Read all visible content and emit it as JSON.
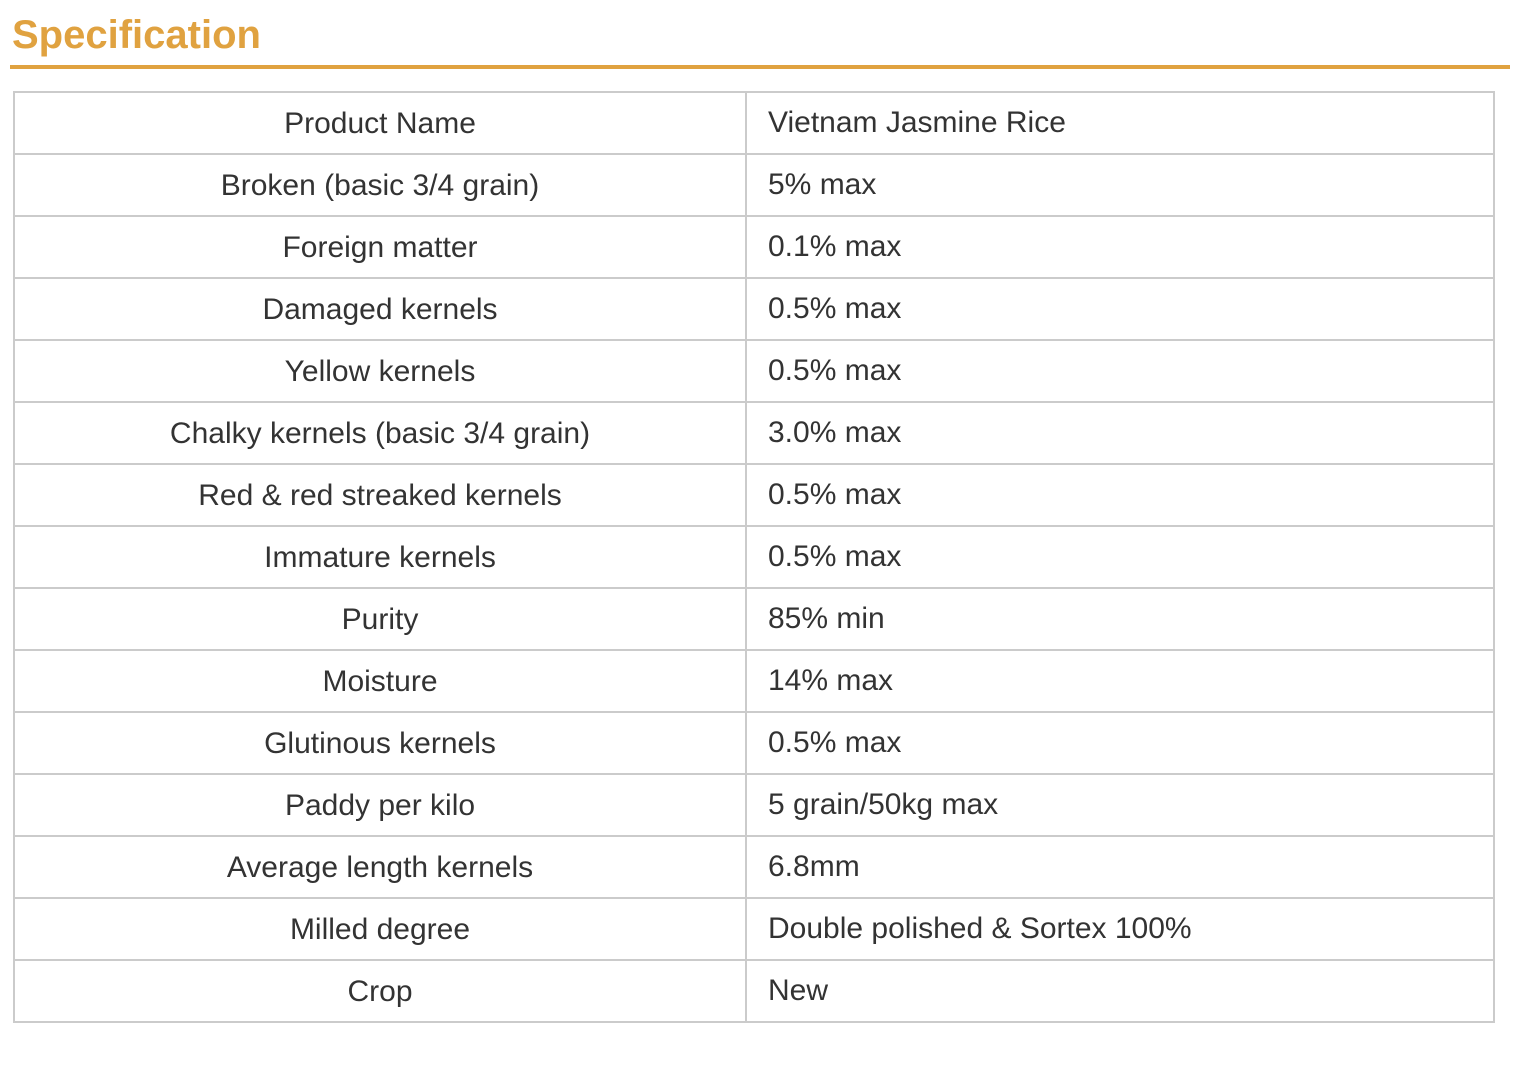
{
  "title": "Specification",
  "colors": {
    "accent": "#e0a240",
    "table_border": "#cbcbcb",
    "text": "#333333",
    "background": "#ffffff"
  },
  "table": {
    "columns": [
      "attribute",
      "value"
    ],
    "rows": [
      {
        "label": "Product Name",
        "value": "Vietnam Jasmine Rice"
      },
      {
        "label": "Broken (basic 3/4 grain)",
        "value": "5% max"
      },
      {
        "label": "Foreign matter",
        "value": "0.1% max"
      },
      {
        "label": "Damaged kernels",
        "value": "0.5% max"
      },
      {
        "label": "Yellow kernels",
        "value": "0.5% max"
      },
      {
        "label": "Chalky kernels (basic 3/4 grain)",
        "value": "3.0% max"
      },
      {
        "label": "Red & red streaked kernels",
        "value": "0.5% max"
      },
      {
        "label": "Immature kernels",
        "value": "0.5% max"
      },
      {
        "label": "Purity",
        "value": "85% min"
      },
      {
        "label": "Moisture",
        "value": "14% max"
      },
      {
        "label": "Glutinous kernels",
        "value": "0.5% max"
      },
      {
        "label": "Paddy per kilo",
        "value": "5 grain/50kg max"
      },
      {
        "label": "Average length kernels",
        "value": "6.8mm"
      },
      {
        "label": "Milled degree",
        "value": "Double polished & Sortex 100%"
      },
      {
        "label": "Crop",
        "value": "New"
      }
    ]
  }
}
